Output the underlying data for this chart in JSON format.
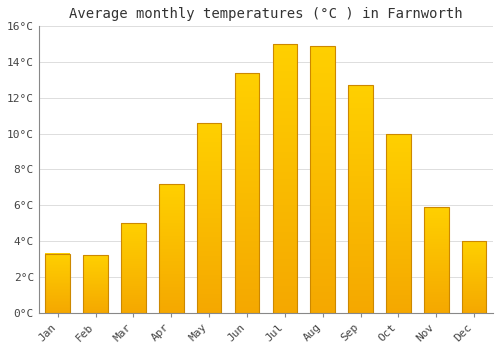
{
  "months": [
    "Jan",
    "Feb",
    "Mar",
    "Apr",
    "May",
    "Jun",
    "Jul",
    "Aug",
    "Sep",
    "Oct",
    "Nov",
    "Dec"
  ],
  "temperatures": [
    3.3,
    3.2,
    5.0,
    7.2,
    10.6,
    13.4,
    15.0,
    14.9,
    12.7,
    10.0,
    5.9,
    4.0
  ],
  "bar_color_top": "#FFD000",
  "bar_color_bottom": "#F5A800",
  "bar_edge_color": "#CC8800",
  "background_color": "#FFFFFF",
  "grid_color": "#DDDDDD",
  "title": "Average monthly temperatures (°C ) in Farnworth",
  "title_fontsize": 10,
  "ylim": [
    0,
    16
  ],
  "yticks": [
    0,
    2,
    4,
    6,
    8,
    10,
    12,
    14,
    16
  ],
  "ytick_labels": [
    "0°C",
    "2°C",
    "4°C",
    "6°C",
    "8°C",
    "10°C",
    "12°C",
    "14°C",
    "16°C"
  ],
  "tick_fontsize": 8,
  "font_family": "monospace",
  "bar_width": 0.65
}
